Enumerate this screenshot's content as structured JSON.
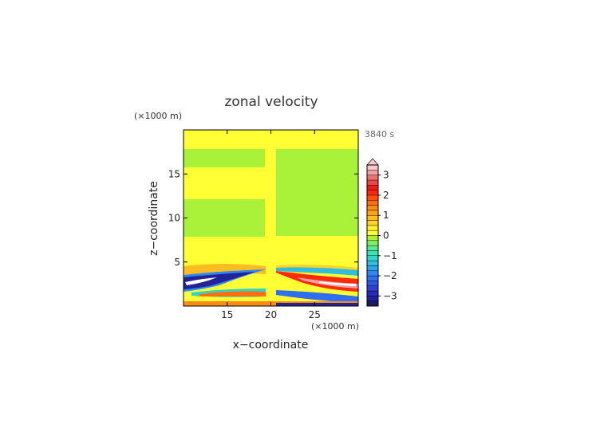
{
  "chart_data": {
    "type": "heatmap",
    "title": "zonal velocity",
    "xlabel": "x−coordinate",
    "ylabel": "z−coordinate",
    "x_unit": "(×1000 m)",
    "y_unit": "(×1000 m)",
    "time_label": "3840 s",
    "xlim": [
      10,
      30
    ],
    "ylim": [
      0,
      20
    ],
    "x_ticks": [
      15,
      20,
      25
    ],
    "y_ticks": [
      5,
      10,
      15
    ],
    "grid": false,
    "colorbar": {
      "placement": "right",
      "levels": [
        -3.5,
        -3.25,
        -3,
        -2.75,
        -2.5,
        -2.25,
        -2,
        -1.75,
        -1.5,
        -1.25,
        -1,
        -0.75,
        -0.5,
        -0.25,
        0,
        0.25,
        0.5,
        0.75,
        1,
        1.25,
        1.5,
        1.75,
        2,
        2.25,
        2.5,
        2.75,
        3,
        3.25,
        3.5
      ],
      "colors": [
        "#1a1a66",
        "#222299",
        "#2a2ab8",
        "#2f3fd0",
        "#2f56e0",
        "#2f6ff0",
        "#2f88f5",
        "#2fa3f0",
        "#2fbde0",
        "#2fd6c8",
        "#3ae6b0",
        "#5aeb8e",
        "#82ee5e",
        "#aaf23a",
        "#ffff33",
        "#ffef2a",
        "#ffd428",
        "#ffbc20",
        "#ffa418",
        "#ff8a14",
        "#ff6e12",
        "#ff5010",
        "#ff2a0c",
        "#f01a1a",
        "#e84848",
        "#ee7272",
        "#f4a0a0",
        "#f8c8c8"
      ],
      "tick_labels": [
        "3",
        "2",
        "1",
        "0",
        "−1",
        "−2",
        "−3"
      ],
      "tick_values": [
        3,
        2,
        1,
        0,
        -1,
        -2,
        -3
      ],
      "extend_max": true
    },
    "field_description": [
      {
        "z_range": [
          15,
          19.5
        ],
        "value": 0,
        "side": "both"
      },
      {
        "z_range": [
          3,
          5
        ],
        "value": 0.6,
        "side": "both"
      },
      {
        "z_range": [
          2,
          3
        ],
        "value": -2.8,
        "side": "left"
      },
      {
        "z_range": [
          1.5,
          3
        ],
        "value": 3.2,
        "side": "right"
      },
      {
        "z_range": [
          0,
          0.5
        ],
        "value": 1.5,
        "side": "both"
      }
    ]
  }
}
